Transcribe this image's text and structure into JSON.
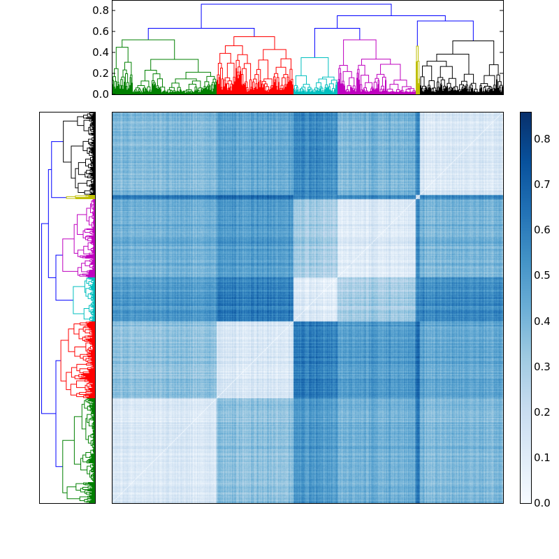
{
  "chart_data": {
    "type": "heatmap",
    "title": "",
    "description_of_axes": "clustered distance matrix with dendrograms",
    "clusters": [
      {
        "name": "green",
        "color": "#008000",
        "leaves": 150,
        "height": 0.52
      },
      {
        "name": "red",
        "color": "#ff0000",
        "leaves": 110,
        "height": 0.55
      },
      {
        "name": "cyan",
        "color": "#00bfbf",
        "leaves": 63,
        "height": 0.35
      },
      {
        "name": "magenta",
        "color": "#bf00bf",
        "leaves": 112,
        "height": 0.52
      },
      {
        "name": "yellow",
        "color": "#bfbf00",
        "leaves": 6,
        "height": 0.46
      },
      {
        "name": "black",
        "color": "#000000",
        "leaves": 119,
        "height": 0.51
      }
    ],
    "link_color": "#0000ff",
    "top_links": {
      "green_red": 0.63,
      "cyan_magenta": 0.63,
      "yellow_black": 0.7,
      "cyanmagenta_yellowblack": 0.75,
      "root": 0.86
    },
    "cluster_mean_distance": [
      [
        0.12,
        0.35,
        0.5,
        0.42,
        0.6,
        0.38
      ],
      [
        0.35,
        0.13,
        0.6,
        0.5,
        0.65,
        0.45
      ],
      [
        0.5,
        0.6,
        0.1,
        0.3,
        0.55,
        0.55
      ],
      [
        0.42,
        0.5,
        0.3,
        0.12,
        0.55,
        0.4
      ],
      [
        0.6,
        0.65,
        0.55,
        0.55,
        0.15,
        0.55
      ],
      [
        0.38,
        0.45,
        0.55,
        0.4,
        0.55,
        0.12
      ]
    ],
    "dendrogram_yticks": [
      "0.0",
      "0.2",
      "0.4",
      "0.6",
      "0.8"
    ],
    "dendrogram_ylim": [
      0,
      0.9
    ],
    "colorbar": {
      "min": 0.0,
      "max": 0.86,
      "ticks": [
        "0.0",
        "0.1",
        "0.2",
        "0.3",
        "0.4",
        "0.5",
        "0.6",
        "0.7",
        "0.8"
      ],
      "colormap": "Blues"
    }
  }
}
